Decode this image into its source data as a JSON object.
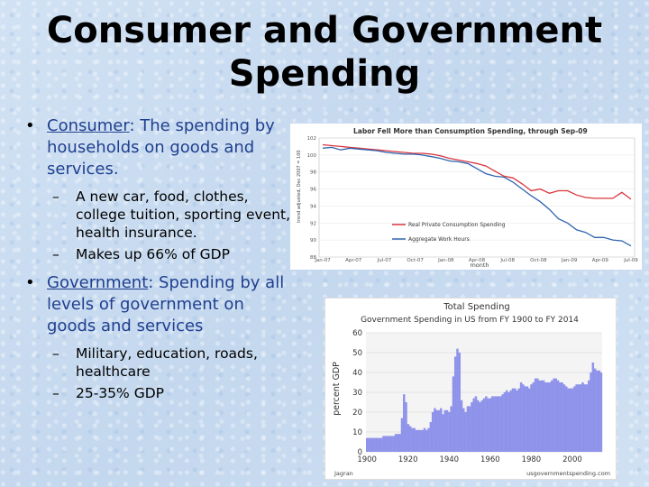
{
  "slide": {
    "title_line1": "Consumer and Government",
    "title_line2": "Spending",
    "bullets": [
      {
        "term": "Consumer",
        "text": ":  The spending by households on goods and services.",
        "sub": [
          "A new car, food, clothes, college tuition, sporting event, health insurance.",
          "Makes up 66% of GDP"
        ]
      },
      {
        "term": "Government",
        "text": ":  Spending by all levels of government on goods and services",
        "sub": [
          "Military, education, roads, healthcare",
          "25-35% GDP"
        ]
      }
    ],
    "dash": "–",
    "dot": "•"
  },
  "chart_data": [
    {
      "type": "line",
      "title": "Labor Fell More than Consumption Spending, through Sep-09",
      "xlabel": "month",
      "ylabel": "trend adjusted, Dec 2007 = 100",
      "ylim": [
        88,
        102
      ],
      "yticks": [
        88,
        90,
        92,
        94,
        96,
        98,
        100,
        102
      ],
      "xticks": [
        "Jan-07",
        "Apr-07",
        "Jul-07",
        "Oct-07",
        "Jan-08",
        "Apr-08",
        "Jul-08",
        "Oct-08",
        "Jan-09",
        "Apr-09",
        "Jul-09"
      ],
      "series": [
        {
          "name": "Real Private Consumption Spending",
          "color": "#d9363e",
          "values": [
            101.2,
            101.1,
            101.0,
            100.9,
            100.8,
            100.7,
            100.6,
            100.5,
            100.4,
            100.3,
            100.2,
            100.2,
            100.1,
            99.9,
            99.6,
            99.4,
            99.2,
            99.0,
            98.7,
            98.1,
            97.5,
            97.3,
            96.6,
            95.8,
            96.0,
            95.5,
            95.8,
            95.8,
            95.3,
            95.0,
            94.9,
            94.9,
            94.9,
            95.6,
            94.8
          ]
        },
        {
          "name": "Aggregate Work Hours",
          "color": "#2f64b0",
          "values": [
            100.8,
            100.9,
            100.6,
            100.8,
            100.7,
            100.6,
            100.5,
            100.3,
            100.2,
            100.1,
            100.1,
            100.0,
            99.8,
            99.6,
            99.3,
            99.2,
            99.0,
            98.4,
            97.8,
            97.5,
            97.4,
            96.8,
            96.0,
            95.2,
            94.5,
            93.6,
            92.5,
            92.0,
            91.2,
            90.9,
            90.3,
            90.3,
            90.0,
            89.9,
            89.3
          ]
        }
      ]
    },
    {
      "type": "bar",
      "title": "Total Spending",
      "subtitle": "Government Spending in US from FY 1900 to FY 2014",
      "ylabel": "percent GDP",
      "ylim": [
        0,
        60
      ],
      "yticks": [
        0,
        10,
        20,
        30,
        40,
        50,
        60
      ],
      "xticks": [
        "1900",
        "1920",
        "1940",
        "1960",
        "1980",
        "2000"
      ],
      "source_left": "Jagran",
      "source_right": "usgovernmentspending.com",
      "color": "#8f93ea",
      "x": [
        1900,
        1901,
        1902,
        1903,
        1904,
        1905,
        1906,
        1907,
        1908,
        1909,
        1910,
        1911,
        1912,
        1913,
        1914,
        1915,
        1916,
        1917,
        1918,
        1919,
        1920,
        1921,
        1922,
        1923,
        1924,
        1925,
        1926,
        1927,
        1928,
        1929,
        1930,
        1931,
        1932,
        1933,
        1934,
        1935,
        1936,
        1937,
        1938,
        1939,
        1940,
        1941,
        1942,
        1943,
        1944,
        1945,
        1946,
        1947,
        1948,
        1949,
        1950,
        1951,
        1952,
        1953,
        1954,
        1955,
        1956,
        1957,
        1958,
        1959,
        1960,
        1961,
        1962,
        1963,
        1964,
        1965,
        1966,
        1967,
        1968,
        1969,
        1970,
        1971,
        1972,
        1973,
        1974,
        1975,
        1976,
        1977,
        1978,
        1979,
        1980,
        1981,
        1982,
        1983,
        1984,
        1985,
        1986,
        1987,
        1988,
        1989,
        1990,
        1991,
        1992,
        1993,
        1994,
        1995,
        1996,
        1997,
        1998,
        1999,
        2000,
        2001,
        2002,
        2003,
        2004,
        2005,
        2006,
        2007,
        2008,
        2009,
        2010,
        2011,
        2012,
        2013,
        2014
      ],
      "values": [
        7,
        7,
        7,
        7,
        7,
        7,
        7,
        7,
        8,
        8,
        8,
        8,
        8,
        8,
        9,
        9,
        9,
        17,
        29,
        25,
        14,
        13,
        12,
        12,
        11,
        11,
        11,
        11,
        12,
        11,
        12,
        15,
        20,
        22,
        21,
        21,
        22,
        19,
        21,
        21,
        20,
        23,
        38,
        48,
        52,
        50,
        26,
        22,
        20,
        23,
        23,
        25,
        27,
        28,
        26,
        25,
        26,
        27,
        28,
        27,
        27,
        28,
        28,
        28,
        28,
        28,
        29,
        30,
        31,
        30,
        31,
        32,
        32,
        31,
        32,
        35,
        34,
        33,
        33,
        32,
        34,
        35,
        37,
        37,
        36,
        36,
        36,
        35,
        35,
        35,
        36,
        37,
        37,
        36,
        35,
        35,
        34,
        33,
        32,
        32,
        32,
        33,
        34,
        34,
        34,
        35,
        34,
        34,
        36,
        40,
        45,
        42,
        41,
        41,
        40
      ]
    }
  ]
}
